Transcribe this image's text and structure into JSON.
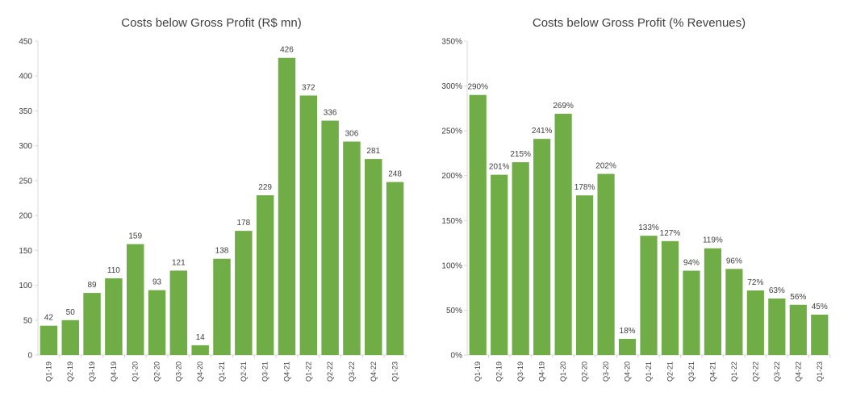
{
  "chart_data": [
    {
      "type": "bar",
      "title": "Costs below Gross Profit (R$ mn)",
      "xlabel": "",
      "ylabel": "",
      "ylim": [
        0,
        450
      ],
      "yticks": [
        0,
        50,
        100,
        150,
        200,
        250,
        300,
        350,
        400,
        450
      ],
      "ytick_labels": [
        "0",
        "50",
        "100",
        "150",
        "200",
        "250",
        "300",
        "350",
        "400",
        "450"
      ],
      "grid": false,
      "legend": "none",
      "bar_color": "#70ad47",
      "categories": [
        "Q1-19",
        "Q2-19",
        "Q3-19",
        "Q4-19",
        "Q1-20",
        "Q2-20",
        "Q3-20",
        "Q4-20",
        "Q1-21",
        "Q2-21",
        "Q3-21",
        "Q4-21",
        "Q1-22",
        "Q2-22",
        "Q3-22",
        "Q4-22",
        "Q1-23"
      ],
      "values": [
        42,
        50,
        89,
        110,
        159,
        93,
        121,
        14,
        138,
        178,
        229,
        426,
        372,
        336,
        306,
        281,
        248
      ],
      "data_labels": [
        "42",
        "50",
        "89",
        "110",
        "159",
        "93",
        "121",
        "14",
        "138",
        "178",
        "229",
        "426",
        "372",
        "336",
        "306",
        "281",
        "248"
      ]
    },
    {
      "type": "bar",
      "title": "Costs below Gross Profit (% Revenues)",
      "xlabel": "",
      "ylabel": "",
      "ylim": [
        0,
        350
      ],
      "yticks": [
        0,
        50,
        100,
        150,
        200,
        250,
        300,
        350
      ],
      "ytick_labels": [
        "0%",
        "50%",
        "100%",
        "150%",
        "200%",
        "250%",
        "300%",
        "350%"
      ],
      "grid": false,
      "legend": "none",
      "bar_color": "#70ad47",
      "categories": [
        "Q1-19",
        "Q2-19",
        "Q3-19",
        "Q4-19",
        "Q1-20",
        "Q2-20",
        "Q3-20",
        "Q4-20",
        "Q1-21",
        "Q2-21",
        "Q3-21",
        "Q4-21",
        "Q1-22",
        "Q2-22",
        "Q3-22",
        "Q4-22",
        "Q1-23"
      ],
      "values": [
        290,
        201,
        215,
        241,
        269,
        178,
        202,
        18,
        133,
        127,
        94,
        119,
        96,
        72,
        63,
        56,
        45
      ],
      "data_labels": [
        "290%",
        "201%",
        "215%",
        "241%",
        "269%",
        "178%",
        "202%",
        "18%",
        "133%",
        "127%",
        "94%",
        "119%",
        "96%",
        "72%",
        "63%",
        "56%",
        "45%"
      ]
    }
  ]
}
